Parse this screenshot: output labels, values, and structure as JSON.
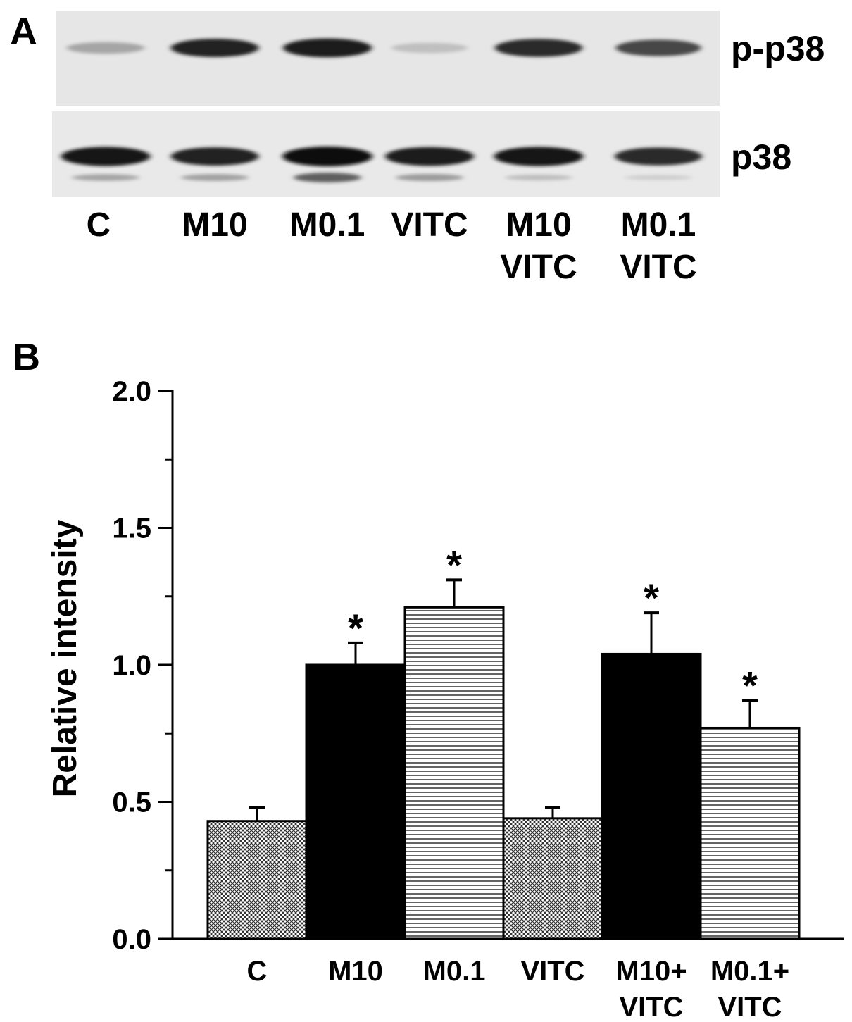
{
  "panel_a": {
    "letter": "A",
    "blots": [
      {
        "label": "p-p38",
        "intensities": [
          0.28,
          0.88,
          0.92,
          0.16,
          0.85,
          0.72
        ],
        "lower_band": [
          0,
          0,
          0,
          0,
          0,
          0
        ]
      },
      {
        "label": "p38",
        "intensities": [
          0.95,
          0.88,
          1.0,
          0.92,
          0.96,
          0.85
        ],
        "lower_band": [
          0.3,
          0.32,
          0.65,
          0.35,
          0.18,
          0.1
        ]
      }
    ],
    "lanes": [
      {
        "line1": "C",
        "line2": ""
      },
      {
        "line1": "M10",
        "line2": ""
      },
      {
        "line1": "M0.1",
        "line2": ""
      },
      {
        "line1": "VITC",
        "line2": ""
      },
      {
        "line1": "M10",
        "line2": "VITC"
      },
      {
        "line1": "M0.1",
        "line2": "VITC"
      }
    ]
  },
  "panel_b": {
    "letter": "B"
  },
  "chart_data": {
    "type": "bar",
    "ylabel": "Relative intensity",
    "xlabel": "",
    "ylim": [
      0,
      2.0
    ],
    "yticks": [
      "0.0",
      "0.5",
      "1.0",
      "1.5",
      "2.0"
    ],
    "categories": [
      {
        "line1": "C",
        "line2": ""
      },
      {
        "line1": "M10",
        "line2": ""
      },
      {
        "line1": "M0.1",
        "line2": ""
      },
      {
        "line1": "VITC",
        "line2": ""
      },
      {
        "line1": "M10+",
        "line2": "VITC"
      },
      {
        "line1": "M0.1+",
        "line2": "VITC"
      }
    ],
    "values": [
      0.43,
      1.0,
      1.21,
      0.44,
      1.04,
      0.77
    ],
    "errors": [
      0.05,
      0.08,
      0.1,
      0.04,
      0.15,
      0.1
    ],
    "patterns": [
      "crosshatch",
      "solid",
      "horizontal",
      "crosshatch",
      "solid",
      "horizontal"
    ],
    "significance": [
      "",
      "*",
      "*",
      "",
      "*",
      "*"
    ]
  }
}
